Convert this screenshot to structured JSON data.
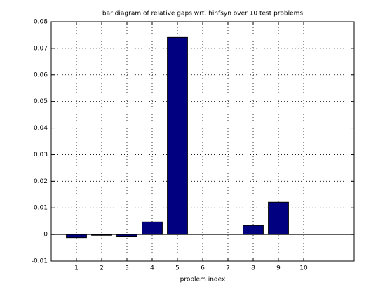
{
  "chart_data": {
    "type": "bar",
    "title": "bar diagram of relative gaps wrt. hinfsyn over 10 test problems",
    "x_label": "problem index",
    "x": [
      1,
      2,
      3,
      4,
      5,
      6,
      7,
      8,
      9,
      10
    ],
    "values": [
      -0.0012,
      -0.0003,
      -0.0009,
      0.0047,
      0.0741,
      0,
      0,
      0.0034,
      0.0121,
      0
    ],
    "color": "#000080",
    "xlim": [
      0,
      12
    ],
    "xticks": [
      1,
      2,
      3,
      4,
      5,
      6,
      7,
      8,
      9,
      10
    ],
    "ylim": [
      -0.01,
      0.08
    ],
    "yticks": [
      -0.01,
      0,
      0.01,
      0.02,
      0.03,
      0.04,
      0.05,
      0.06,
      0.07,
      0.08
    ],
    "grid": true
  }
}
